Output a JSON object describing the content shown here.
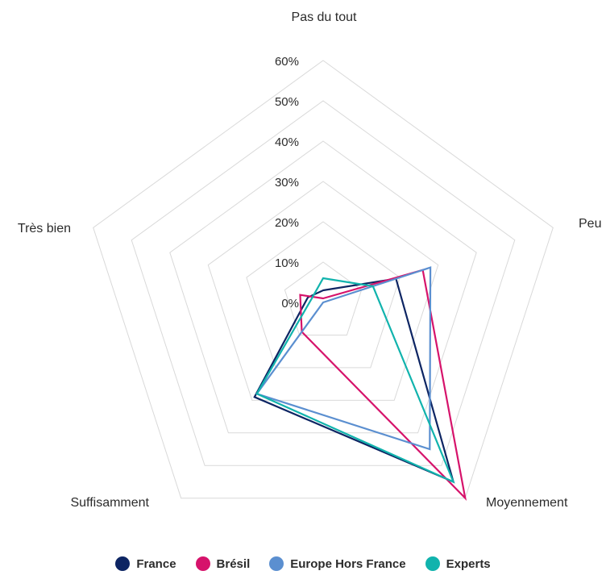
{
  "chart_data": {
    "type": "radar",
    "categories": [
      "Pas du tout",
      "Peu",
      "Moyennement",
      "Suffisamment",
      "Très bien"
    ],
    "ticks": [
      "0%",
      "10%",
      "20%",
      "30%",
      "40%",
      "50%",
      "60%"
    ],
    "rmax": 60,
    "series": [
      {
        "name": "France",
        "color": "#0d2563",
        "values": [
          3,
          19,
          55,
          29,
          4
        ]
      },
      {
        "name": "Brésil",
        "color": "#d6136b",
        "values": [
          1,
          26,
          60,
          9,
          6
        ]
      },
      {
        "name": "Europe Hors France",
        "color": "#5b8fd0",
        "values": [
          0,
          28,
          45,
          28,
          0
        ]
      },
      {
        "name": "Experts",
        "color": "#11b3ad",
        "values": [
          6,
          13,
          55,
          28,
          3
        ]
      }
    ]
  }
}
